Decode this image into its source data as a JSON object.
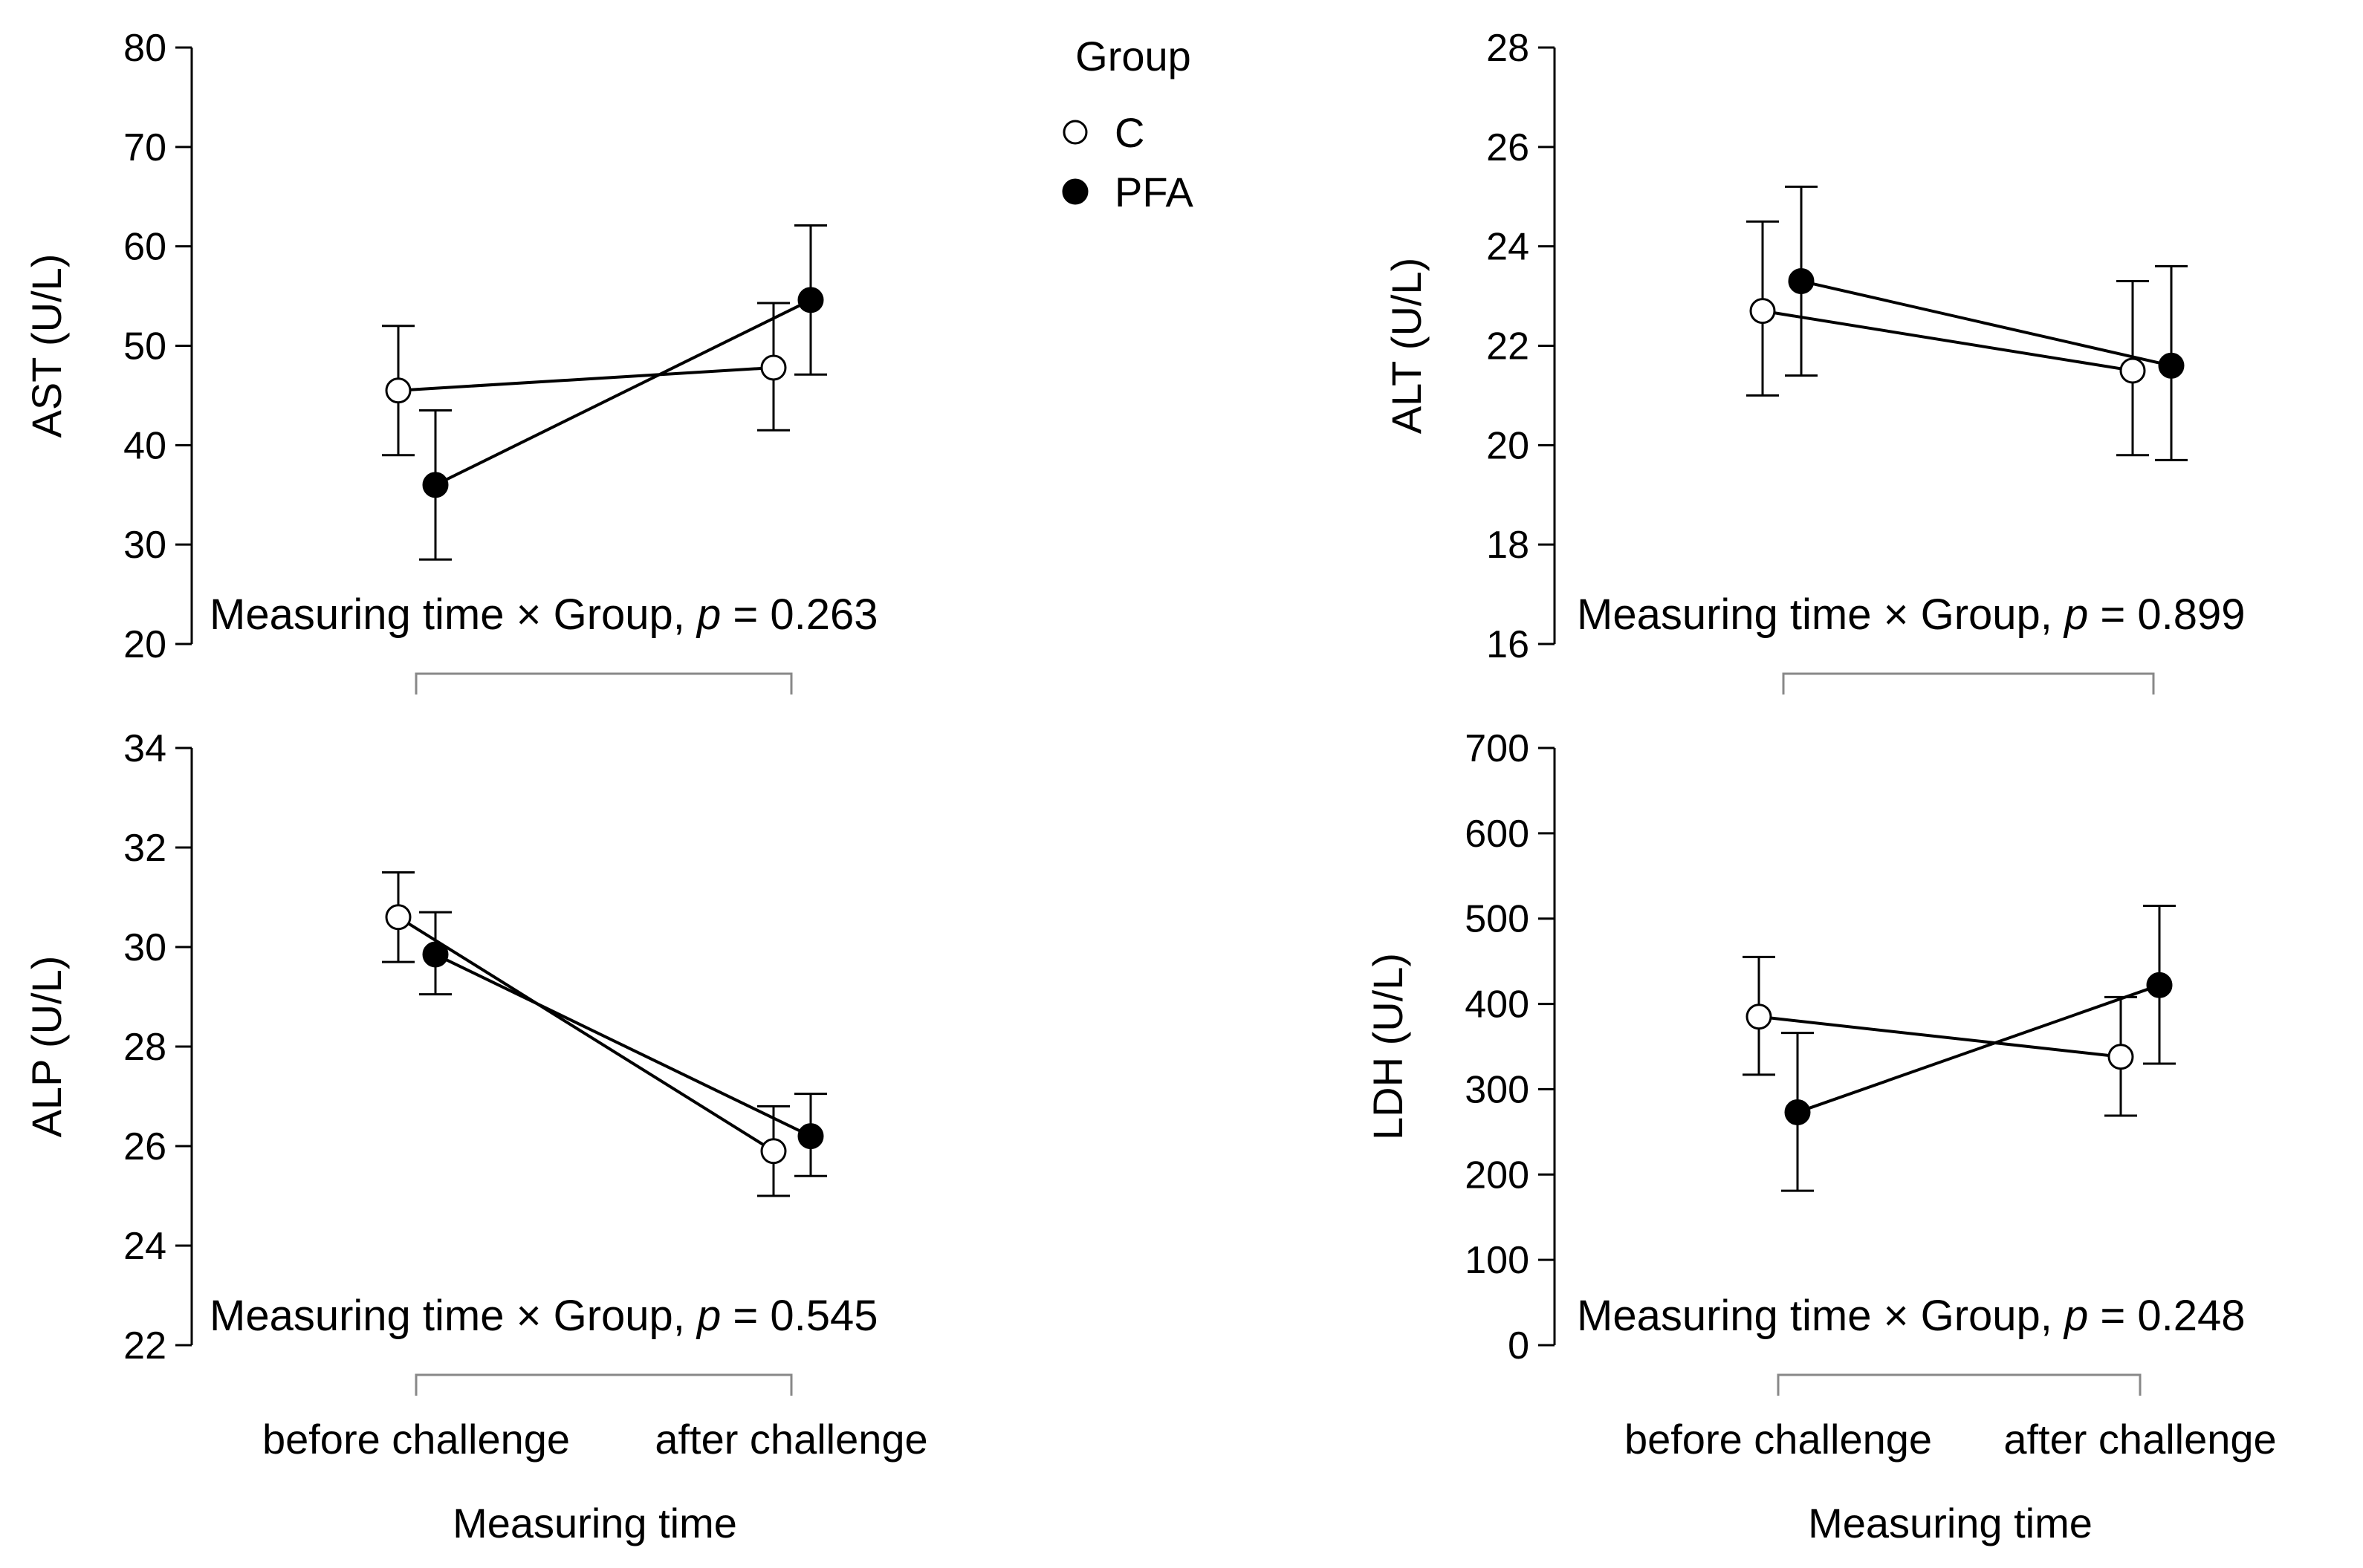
{
  "legend": {
    "title": "Group",
    "items": [
      {
        "label": "C",
        "marker": "open-circle"
      },
      {
        "label": "PFA",
        "marker": "filled-circle"
      }
    ],
    "position": "top-center"
  },
  "colors": {
    "ink": "#000000",
    "bracket": "#888888",
    "background": "#ffffff",
    "open_fill": "#ffffff"
  },
  "common": {
    "xlabel": "Measuring time",
    "annotation_prefix": "Measuring time × Group, ",
    "annotation_p": "p",
    "annotation_eq": " = "
  },
  "chart_data": [
    {
      "type": "line",
      "panel": "top-left",
      "ylabel": "AST (U/L)",
      "ylim": [
        20,
        80
      ],
      "yticks": [
        "20",
        "30",
        "40",
        "50",
        "60",
        "70",
        "80"
      ],
      "categories": [
        "before challenge",
        "after challenge"
      ],
      "show_xticklabels": false,
      "show_xlabel": false,
      "p_value": "0.263",
      "series": [
        {
          "name": "C",
          "values": [
            45.5,
            47.8
          ],
          "err_low": [
            39.0,
            41.5
          ],
          "err_high": [
            52.0,
            54.3
          ]
        },
        {
          "name": "PFA",
          "values": [
            36.0,
            54.6
          ],
          "err_low": [
            28.5,
            47.1
          ],
          "err_high": [
            43.5,
            62.1
          ]
        }
      ]
    },
    {
      "type": "line",
      "panel": "top-right",
      "ylabel": "ALT (U/L)",
      "ylim": [
        16,
        28
      ],
      "yticks": [
        "16",
        "18",
        "20",
        "22",
        "24",
        "26",
        "28"
      ],
      "categories": [
        "before challenge",
        "after challenge"
      ],
      "show_xticklabels": false,
      "show_xlabel": false,
      "p_value": "0.899",
      "series": [
        {
          "name": "C",
          "values": [
            22.7,
            21.5
          ],
          "err_low": [
            21.0,
            19.8
          ],
          "err_high": [
            24.5,
            23.3
          ]
        },
        {
          "name": "PFA",
          "values": [
            23.3,
            21.6
          ],
          "err_low": [
            21.4,
            19.7
          ],
          "err_high": [
            25.2,
            23.6
          ]
        }
      ]
    },
    {
      "type": "line",
      "panel": "bottom-left",
      "ylabel": "ALP (U/L)",
      "ylim": [
        22,
        34
      ],
      "yticks": [
        "22",
        "24",
        "26",
        "28",
        "30",
        "32",
        "34"
      ],
      "categories": [
        "before challenge",
        "after challenge"
      ],
      "show_xticklabels": true,
      "show_xlabel": true,
      "p_value": "0.545",
      "series": [
        {
          "name": "C",
          "values": [
            30.6,
            25.9
          ],
          "err_low": [
            29.7,
            25.0
          ],
          "err_high": [
            31.5,
            26.8
          ]
        },
        {
          "name": "PFA",
          "values": [
            29.85,
            26.2
          ],
          "err_low": [
            29.05,
            25.4
          ],
          "err_high": [
            30.7,
            27.05
          ]
        }
      ]
    },
    {
      "type": "line",
      "panel": "bottom-right",
      "ylabel": "LDH (U/L)",
      "ylim": [
        0,
        700
      ],
      "yticks": [
        "0",
        "100",
        "200",
        "300",
        "400",
        "500",
        "600",
        "700"
      ],
      "categories": [
        "before challenge",
        "after challenge"
      ],
      "show_xticklabels": true,
      "show_xlabel": true,
      "p_value": "0.248",
      "series": [
        {
          "name": "C",
          "values": [
            385,
            338
          ],
          "err_low": [
            317,
            269
          ],
          "err_high": [
            455,
            408
          ]
        },
        {
          "name": "PFA",
          "values": [
            273,
            422
          ],
          "err_low": [
            181,
            330
          ],
          "err_high": [
            366,
            515
          ]
        }
      ]
    }
  ]
}
